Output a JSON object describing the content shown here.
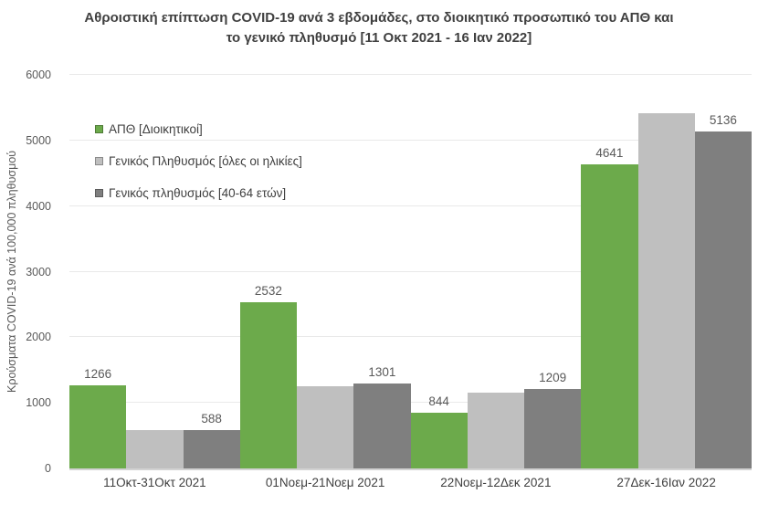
{
  "title": {
    "lines": [
      "Αθροιστική επίπτωση COVID-19 ανά 3 εβδομάδες, στο διοικητικό προσωπικό του ΑΠΘ και",
      "το γενικό πληθυσμό [11 Οκτ 2021 - 16 Ιαν 2022]"
    ]
  },
  "chart_data": {
    "type": "bar",
    "title": "Αθροιστική επίπτωση COVID-19 ανά 3 εβδομάδες, στο διοικητικό προσωπικό του ΑΠΘ και το γενικό πληθυσμό [11 Οκτ 2021 - 16 Ιαν 2022]",
    "categories": [
      "11Οκτ-31Οκτ 2021",
      "01Νοεμ-21Νοεμ 2021",
      "22Νοεμ-12Δεκ 2021",
      "27Δεκ-16Ιαν 2022"
    ],
    "series": [
      {
        "name": "ΑΠΘ [Διοικητικοί]",
        "color": "#6caa4b",
        "values": [
          1266,
          2532,
          844,
          4641
        ],
        "data_labels": [
          "1266",
          "2532",
          "844",
          "4641"
        ]
      },
      {
        "name": "Γενικός Πληθυσμός [όλες οι ηλικίες]",
        "color": "#bfbfbf",
        "values": [
          580,
          1255,
          1155,
          5420
        ],
        "data_labels": null
      },
      {
        "name": "Γενικός πληθυσμός [40-64 ετών]",
        "color": "#7f7f7f",
        "values": [
          588,
          1301,
          1209,
          5136
        ],
        "data_labels": [
          "588",
          "1301",
          "1209",
          "5136"
        ]
      }
    ],
    "xlabel": "",
    "ylabel": "Κρούσματα COVID-19 ανά 100,000 πληθυσμού",
    "ylim": [
      0,
      6000
    ],
    "yticks": [
      0,
      1000,
      2000,
      3000,
      4000,
      5000,
      6000
    ],
    "grid": true,
    "legend_position": "inside-top-left",
    "bar_gap": 0
  },
  "colors": {
    "series_green": "#6caa4b",
    "series_light_gray": "#bfbfbf",
    "series_dark_gray": "#7f7f7f",
    "title_text": "#404040",
    "axis_text": "#595959",
    "gridline": "#e9e9e9",
    "axis_line": "#d2d2d2",
    "background": "#ffffff"
  }
}
